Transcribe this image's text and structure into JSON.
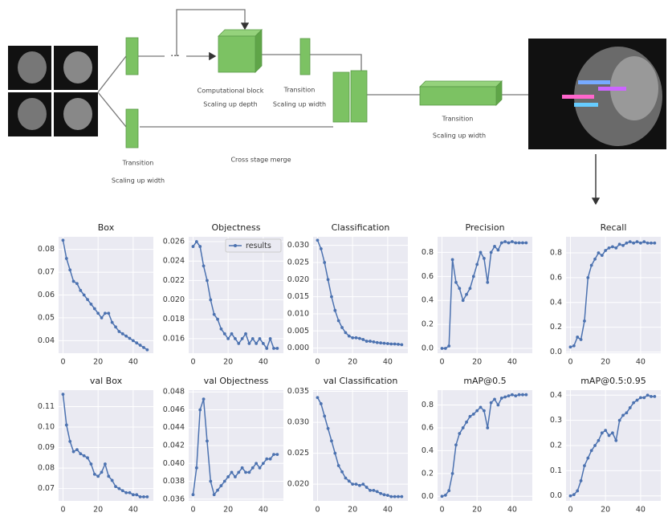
{
  "diagram": {
    "labels": [
      "Computational block",
      "Scaling up depth",
      "Transition",
      "Scaling up width",
      "Transition",
      "Scaling up width",
      "Cross stage merge",
      "Transition",
      "Scaling up width"
    ]
  },
  "chart_data": [
    {
      "type": "line",
      "title": "Box",
      "x": [
        0,
        2,
        4,
        6,
        8,
        10,
        12,
        14,
        16,
        18,
        20,
        22,
        24,
        26,
        28,
        30,
        32,
        34,
        36,
        38,
        40,
        42,
        44,
        46,
        48
      ],
      "values": [
        0.084,
        0.076,
        0.071,
        0.066,
        0.065,
        0.062,
        0.06,
        0.058,
        0.056,
        0.054,
        0.052,
        0.05,
        0.052,
        0.052,
        0.048,
        0.046,
        0.044,
        0.043,
        0.042,
        0.041,
        0.04,
        0.039,
        0.038,
        0.037,
        0.036
      ],
      "color": "#4c72b0",
      "xlim": [
        -2.5,
        51.5
      ],
      "xticks": [
        0,
        20,
        40
      ],
      "ylim": [
        0.0345,
        0.0855
      ],
      "yticks": [
        0.04,
        0.05,
        0.06,
        0.07,
        0.08
      ]
    },
    {
      "type": "line",
      "title": "Objectness",
      "x": [
        0,
        2,
        4,
        6,
        8,
        10,
        12,
        14,
        16,
        18,
        20,
        22,
        24,
        26,
        28,
        30,
        32,
        34,
        36,
        38,
        40,
        42,
        44,
        46,
        48
      ],
      "series": [
        {
          "name": "results",
          "color": "#4c72b0",
          "values": [
            0.0255,
            0.026,
            0.0255,
            0.0235,
            0.022,
            0.02,
            0.0185,
            0.018,
            0.017,
            0.0165,
            0.016,
            0.0165,
            0.016,
            0.0155,
            0.016,
            0.0165,
            0.0155,
            0.016,
            0.0155,
            0.016,
            0.0155,
            0.015,
            0.016,
            0.015,
            0.015
          ]
        }
      ],
      "legend": "upper right",
      "xlim": [
        -2.5,
        51.5
      ],
      "xticks": [
        0,
        20,
        40
      ],
      "ylim": [
        0.0145,
        0.0265
      ],
      "yticks": [
        0.016,
        0.018,
        {
          "value": 0.02,
          "label": "0.020"
        },
        0.022,
        0.024,
        0.026
      ]
    },
    {
      "type": "line",
      "title": "Classification",
      "x": [
        0,
        2,
        4,
        6,
        8,
        10,
        12,
        14,
        16,
        18,
        20,
        22,
        24,
        26,
        28,
        30,
        32,
        34,
        36,
        38,
        40,
        42,
        44,
        46,
        48
      ],
      "values": [
        0.0315,
        0.029,
        0.025,
        0.02,
        0.015,
        0.011,
        0.008,
        0.006,
        0.0045,
        0.0035,
        0.003,
        0.003,
        0.0028,
        0.0025,
        0.002,
        0.002,
        0.0018,
        0.0016,
        0.0015,
        0.0014,
        0.0013,
        0.0012,
        0.0012,
        0.0011,
        0.001
      ],
      "color": "#4c72b0",
      "xlim": [
        -2.5,
        51.5
      ],
      "xticks": [
        0,
        20,
        40
      ],
      "ylim": [
        -0.0015,
        0.0325
      ],
      "yticks": [
        {
          "value": 0,
          "label": "0.000"
        },
        0.005,
        {
          "value": 0.01,
          "label": "0.010"
        },
        0.015,
        {
          "value": 0.02,
          "label": "0.020"
        },
        0.025,
        {
          "value": 0.03,
          "label": "0.030"
        }
      ]
    },
    {
      "type": "line",
      "title": "Precision",
      "x": [
        0,
        2,
        4,
        6,
        8,
        10,
        12,
        14,
        16,
        18,
        20,
        22,
        24,
        26,
        28,
        30,
        32,
        34,
        36,
        38,
        40,
        42,
        44,
        46,
        48
      ],
      "values": [
        0,
        0,
        0.02,
        0.74,
        0.55,
        0.5,
        0.4,
        0.45,
        0.5,
        0.6,
        0.7,
        0.8,
        0.75,
        0.55,
        0.8,
        0.85,
        0.82,
        0.88,
        0.89,
        0.88,
        0.89,
        0.88,
        0.88,
        0.88,
        0.88
      ],
      "color": "#4c72b0",
      "xlim": [
        -2.5,
        51.5
      ],
      "xticks": [
        0,
        20,
        40
      ],
      "ylim": [
        -0.04,
        0.93
      ],
      "yticks": [
        {
          "value": 0,
          "label": "0.0"
        },
        0.2,
        0.4,
        0.6,
        0.8
      ]
    },
    {
      "type": "line",
      "title": "Recall",
      "x": [
        0,
        2,
        4,
        6,
        8,
        10,
        12,
        14,
        16,
        18,
        20,
        22,
        24,
        26,
        28,
        30,
        32,
        34,
        36,
        38,
        40,
        42,
        44,
        46,
        48
      ],
      "values": [
        0.04,
        0.05,
        0.12,
        0.1,
        0.25,
        0.6,
        0.7,
        0.75,
        0.8,
        0.78,
        0.82,
        0.84,
        0.85,
        0.84,
        0.87,
        0.86,
        0.88,
        0.89,
        0.88,
        0.89,
        0.88,
        0.89,
        0.88,
        0.88,
        0.88
      ],
      "color": "#4c72b0",
      "xlim": [
        -2.5,
        51.5
      ],
      "xticks": [
        0,
        20,
        40
      ],
      "ylim": [
        -0.01,
        0.93
      ],
      "yticks": [
        {
          "value": 0,
          "label": "0.0"
        },
        0.2,
        0.4,
        0.6,
        0.8
      ]
    },
    {
      "type": "line",
      "title": "val Box",
      "x": [
        0,
        2,
        4,
        6,
        8,
        10,
        12,
        14,
        16,
        18,
        20,
        22,
        24,
        26,
        28,
        30,
        32,
        34,
        36,
        38,
        40,
        42,
        44,
        46,
        48
      ],
      "values": [
        0.116,
        0.101,
        0.093,
        0.088,
        0.089,
        0.087,
        0.086,
        0.085,
        0.082,
        0.077,
        0.076,
        0.078,
        0.082,
        0.076,
        0.074,
        0.071,
        0.07,
        0.069,
        0.068,
        0.068,
        0.067,
        0.067,
        0.066,
        0.066,
        0.066
      ],
      "color": "#4c72b0",
      "xlim": [
        -2.5,
        51.5
      ],
      "xticks": [
        0,
        20,
        40
      ],
      "ylim": [
        0.064,
        0.118
      ],
      "yticks": [
        0.07,
        0.08,
        0.09,
        {
          "value": 0.1,
          "label": "0.10"
        },
        0.11
      ]
    },
    {
      "type": "line",
      "title": "val Objectness",
      "x": [
        0,
        2,
        4,
        6,
        8,
        10,
        12,
        14,
        16,
        18,
        20,
        22,
        24,
        26,
        28,
        30,
        32,
        34,
        36,
        38,
        40,
        42,
        44,
        46,
        48
      ],
      "values": [
        0.0365,
        0.0395,
        0.046,
        0.0472,
        0.0425,
        0.038,
        0.0365,
        0.037,
        0.0375,
        0.038,
        0.0385,
        0.039,
        0.0385,
        0.039,
        0.0395,
        0.039,
        0.039,
        0.0395,
        0.04,
        0.0395,
        0.04,
        0.0405,
        0.0405,
        0.041,
        0.041
      ],
      "color": "#4c72b0",
      "xlim": [
        -2.5,
        51.5
      ],
      "xticks": [
        0,
        20,
        40
      ],
      "ylim": [
        0.0358,
        0.0482
      ],
      "yticks": [
        0.036,
        0.038,
        {
          "value": 0.04,
          "label": "0.040"
        },
        0.042,
        0.044,
        0.046,
        0.048
      ]
    },
    {
      "type": "line",
      "title": "val Classification",
      "x": [
        0,
        2,
        4,
        6,
        8,
        10,
        12,
        14,
        16,
        18,
        20,
        22,
        24,
        26,
        28,
        30,
        32,
        34,
        36,
        38,
        40,
        42,
        44,
        46,
        48
      ],
      "values": [
        0.034,
        0.033,
        0.031,
        0.029,
        0.027,
        0.025,
        0.023,
        0.022,
        0.021,
        0.0205,
        0.02,
        0.02,
        0.0198,
        0.02,
        0.0195,
        0.019,
        0.019,
        0.0188,
        0.0185,
        0.0183,
        0.0182,
        0.018,
        0.018,
        0.018,
        0.018
      ],
      "color": "#4c72b0",
      "xlim": [
        -2.5,
        51.5
      ],
      "xticks": [
        0,
        20,
        40
      ],
      "ylim": [
        0.0173,
        0.0352
      ],
      "yticks": [
        {
          "value": 0.02,
          "label": "0.020"
        },
        0.025,
        {
          "value": 0.03,
          "label": "0.030"
        },
        0.035
      ]
    },
    {
      "type": "line",
      "title": "mAP@0.5",
      "x": [
        0,
        2,
        4,
        6,
        8,
        10,
        12,
        14,
        16,
        18,
        20,
        22,
        24,
        26,
        28,
        30,
        32,
        34,
        36,
        38,
        40,
        42,
        44,
        46,
        48
      ],
      "values": [
        0,
        0.01,
        0.05,
        0.2,
        0.45,
        0.55,
        0.6,
        0.65,
        0.7,
        0.72,
        0.75,
        0.78,
        0.75,
        0.6,
        0.82,
        0.85,
        0.8,
        0.86,
        0.87,
        0.88,
        0.89,
        0.88,
        0.89,
        0.89,
        0.89
      ],
      "color": "#4c72b0",
      "xlim": [
        -2.5,
        51.5
      ],
      "xticks": [
        0,
        20,
        40
      ],
      "ylim": [
        -0.04,
        0.93
      ],
      "yticks": [
        {
          "value": 0,
          "label": "0.0"
        },
        0.2,
        0.4,
        0.6,
        0.8
      ]
    },
    {
      "type": "line",
      "title": "mAP@0.5:0.95",
      "x": [
        0,
        2,
        4,
        6,
        8,
        10,
        12,
        14,
        16,
        18,
        20,
        22,
        24,
        26,
        28,
        30,
        32,
        34,
        36,
        38,
        40,
        42,
        44,
        46,
        48
      ],
      "values": [
        0,
        0.005,
        0.02,
        0.06,
        0.12,
        0.15,
        0.18,
        0.2,
        0.22,
        0.25,
        0.26,
        0.24,
        0.25,
        0.22,
        0.3,
        0.32,
        0.33,
        0.35,
        0.37,
        0.38,
        0.39,
        0.39,
        0.4,
        0.395,
        0.395
      ],
      "color": "#4c72b0",
      "xlim": [
        -2.5,
        51.5
      ],
      "xticks": [
        0,
        20,
        40
      ],
      "ylim": [
        -0.02,
        0.42
      ],
      "yticks": [
        {
          "value": 0,
          "label": "0.0"
        },
        0.1,
        0.2,
        0.3,
        0.4
      ]
    }
  ]
}
